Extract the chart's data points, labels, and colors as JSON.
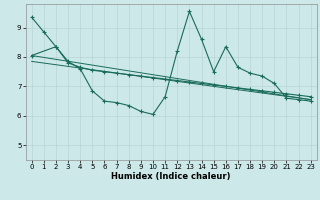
{
  "xlabel": "Humidex (Indice chaleur)",
  "bg_color": "#cce8e8",
  "line_color": "#1a6b5a",
  "grid_color": "#b8d4d4",
  "line1_x": [
    0,
    1,
    2,
    3,
    4,
    5,
    6,
    7,
    8,
    9,
    10,
    11,
    12,
    13,
    14,
    15,
    16,
    17,
    18,
    19,
    20,
    21,
    22,
    23
  ],
  "line1_y": [
    9.35,
    8.85,
    8.35,
    7.85,
    7.6,
    6.85,
    6.5,
    6.45,
    6.35,
    6.15,
    6.05,
    6.65,
    8.2,
    9.55,
    8.6,
    7.5,
    8.35,
    7.65,
    7.45,
    7.35,
    7.1,
    6.6,
    6.55,
    6.5
  ],
  "line2_x": [
    0,
    2,
    3,
    4,
    5,
    6,
    7,
    8,
    9,
    10,
    11,
    12,
    13,
    14,
    15,
    16,
    17,
    18,
    19,
    20,
    21,
    22,
    23
  ],
  "line2_y": [
    8.05,
    8.35,
    7.8,
    7.65,
    7.55,
    7.5,
    7.45,
    7.4,
    7.35,
    7.3,
    7.25,
    7.2,
    7.15,
    7.1,
    7.05,
    7.0,
    6.95,
    6.9,
    6.85,
    6.8,
    6.75,
    6.7,
    6.65
  ],
  "line3_x": [
    0,
    23
  ],
  "line3_y": [
    8.05,
    6.55
  ],
  "line4_x": [
    0,
    23
  ],
  "line4_y": [
    7.85,
    6.55
  ],
  "xlim": [
    -0.5,
    23.5
  ],
  "ylim": [
    4.5,
    9.8
  ],
  "yticks": [
    5,
    6,
    7,
    8,
    9
  ],
  "xticks": [
    0,
    1,
    2,
    3,
    4,
    5,
    6,
    7,
    8,
    9,
    10,
    11,
    12,
    13,
    14,
    15,
    16,
    17,
    18,
    19,
    20,
    21,
    22,
    23
  ],
  "tick_fontsize": 5.0,
  "xlabel_fontsize": 6.0
}
